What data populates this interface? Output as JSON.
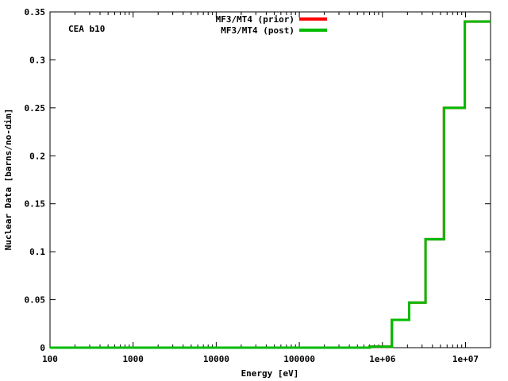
{
  "chart_data": {
    "type": "line",
    "step": true,
    "xlabel": "Energy [eV]",
    "ylabel": "Nuclear Data [barns/no-dim]",
    "annotation": "CEA b10",
    "xscale": "log",
    "xlim": [
      100,
      20000000
    ],
    "ylim": [
      0,
      0.35
    ],
    "x_ticks": [
      {
        "value": 100,
        "label": "100"
      },
      {
        "value": 1000,
        "label": "1000"
      },
      {
        "value": 10000,
        "label": "10000"
      },
      {
        "value": 100000,
        "label": "100000"
      },
      {
        "value": 1000000,
        "label": "1e+06"
      },
      {
        "value": 10000000,
        "label": "1e+07"
      }
    ],
    "y_ticks": [
      {
        "value": 0,
        "label": "0"
      },
      {
        "value": 0.05,
        "label": "0.05"
      },
      {
        "value": 0.1,
        "label": "0.1"
      },
      {
        "value": 0.15,
        "label": "0.15"
      },
      {
        "value": 0.2,
        "label": "0.2"
      },
      {
        "value": 0.25,
        "label": "0.25"
      },
      {
        "value": 0.3,
        "label": "0.3"
      },
      {
        "value": 0.35,
        "label": "0.35"
      }
    ],
    "legend_position": "top-center",
    "series": [
      {
        "name": "MF3/MT4 (prior)",
        "color": "#ff0000",
        "x": [
          100,
          700000,
          1300000,
          2100000,
          3300000,
          5500000,
          9800000,
          20000000
        ],
        "y": [
          0,
          0.001,
          0.029,
          0.047,
          0.113,
          0.25,
          0.34,
          0.34
        ]
      },
      {
        "name": "MF3/MT4 (post)",
        "color": "#00bb00",
        "x": [
          100,
          700000,
          1300000,
          2100000,
          3300000,
          5500000,
          9800000,
          20000000
        ],
        "y": [
          0,
          0.001,
          0.029,
          0.047,
          0.113,
          0.25,
          0.34,
          0.34
        ]
      }
    ]
  }
}
